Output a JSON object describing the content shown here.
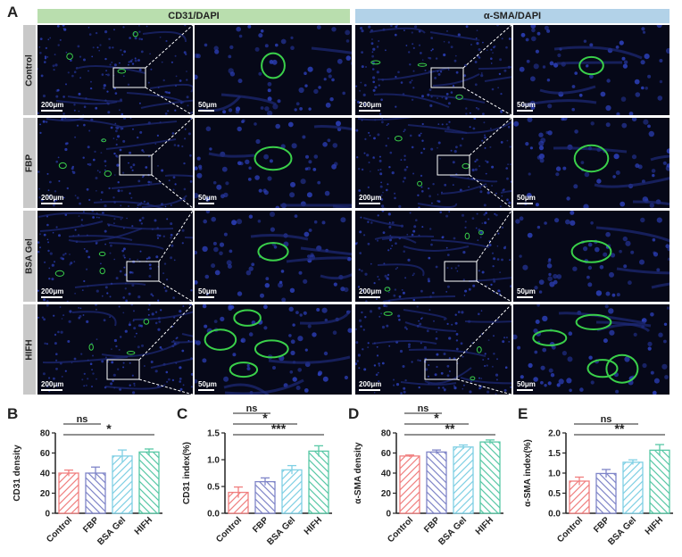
{
  "panel_a": {
    "letter": "A",
    "headers": [
      "CD31/DAPI",
      "α-SMA/DAPI"
    ],
    "rows": [
      "Control",
      "FBP",
      "BSA Gel",
      "HIFH"
    ],
    "scale_overview": "200μm",
    "scale_zoom": "50μm"
  },
  "colors": {
    "control": "#f07f7f",
    "fbp": "#7f85c8",
    "bsa_gel": "#7fd0e4",
    "hifh": "#58c8a6",
    "header_cd31": "#b9deae",
    "header_sma": "#b2d2e8"
  },
  "chart_data": [
    {
      "type": "bar",
      "letter": "B",
      "categories": [
        "Control",
        "FBP",
        "BSA Gel",
        "HIFH"
      ],
      "values": [
        40,
        40,
        57,
        61
      ],
      "errors": [
        3,
        6,
        6,
        3
      ],
      "ylabel": "CD31 density",
      "ylim": [
        0,
        80
      ],
      "yticks": [
        "0",
        "20",
        "40",
        "60",
        "80"
      ],
      "sig": [
        {
          "from": 0,
          "to": 1,
          "label": "ns"
        },
        {
          "from": 0,
          "to": 3,
          "label": "*"
        }
      ]
    },
    {
      "type": "bar",
      "letter": "C",
      "categories": [
        "Control",
        "FBP",
        "BSA Gel",
        "HIFH"
      ],
      "values": [
        0.39,
        0.59,
        0.81,
        1.16
      ],
      "errors": [
        0.1,
        0.07,
        0.08,
        0.1
      ],
      "ylabel": "CD31 index(%)",
      "ylim": [
        0,
        1.5
      ],
      "yticks": [
        "0.0",
        "0.5",
        "1.0",
        "1.5"
      ],
      "sig": [
        {
          "from": 0,
          "to": 1,
          "label": "ns"
        },
        {
          "from": 0,
          "to": 2,
          "label": "*"
        },
        {
          "from": 0,
          "to": 3,
          "label": "***"
        }
      ]
    },
    {
      "type": "bar",
      "letter": "D",
      "categories": [
        "Control",
        "FBP",
        "BSA Gel",
        "HIFH"
      ],
      "values": [
        57,
        61,
        66,
        71
      ],
      "errors": [
        1,
        2,
        2,
        2
      ],
      "ylabel": "α-SMA density",
      "ylim": [
        0,
        80
      ],
      "yticks": [
        "0",
        "20",
        "40",
        "60",
        "80"
      ],
      "sig": [
        {
          "from": 0,
          "to": 1,
          "label": "ns"
        },
        {
          "from": 0,
          "to": 2,
          "label": "*"
        },
        {
          "from": 0,
          "to": 3,
          "label": "**"
        }
      ]
    },
    {
      "type": "bar",
      "letter": "E",
      "categories": [
        "Control",
        "FBP",
        "BSA Gel",
        "HIFH"
      ],
      "values": [
        0.8,
        0.99,
        1.27,
        1.57
      ],
      "errors": [
        0.1,
        0.1,
        0.06,
        0.14
      ],
      "ylabel": "α-SMA index(%)",
      "ylim": [
        0,
        2.0
      ],
      "yticks": [
        "0.0",
        "0.5",
        "1.0",
        "1.5",
        "2.0"
      ],
      "sig": [
        {
          "from": 0,
          "to": 2,
          "label": "ns"
        },
        {
          "from": 0,
          "to": 3,
          "label": "**"
        }
      ]
    }
  ]
}
